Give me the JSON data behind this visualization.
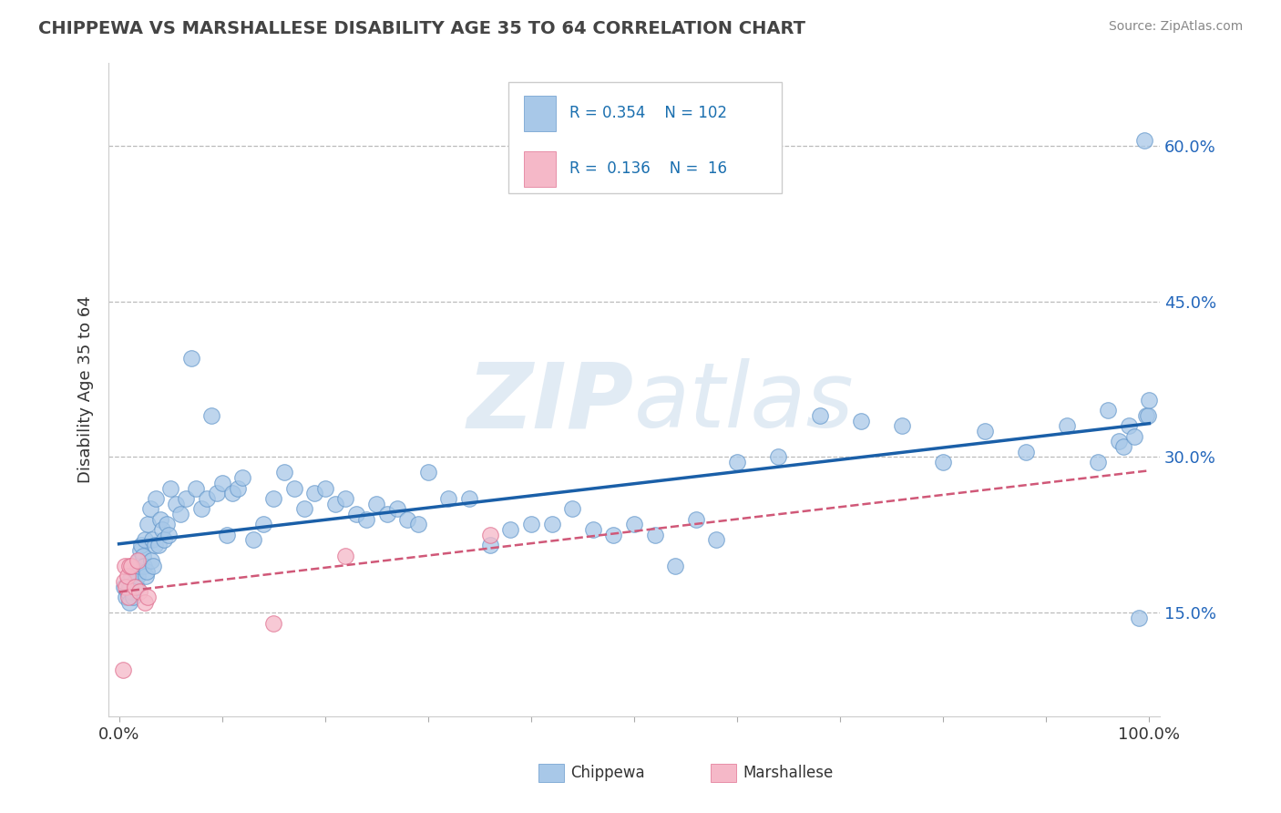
{
  "title": "CHIPPEWA VS MARSHALLESE DISABILITY AGE 35 TO 64 CORRELATION CHART",
  "source": "Source: ZipAtlas.com",
  "ylabel": "Disability Age 35 to 64",
  "xlim": [
    -0.01,
    1.01
  ],
  "ylim": [
    0.05,
    0.68
  ],
  "xticks": [
    0.0,
    0.1,
    0.2,
    0.3,
    0.4,
    0.5,
    0.6,
    0.7,
    0.8,
    0.9,
    1.0
  ],
  "yticks": [
    0.15,
    0.3,
    0.45,
    0.6
  ],
  "yticklabels": [
    "15.0%",
    "30.0%",
    "45.0%",
    "60.0%"
  ],
  "chippewa_R": 0.354,
  "chippewa_N": 102,
  "marshallese_R": 0.136,
  "marshallese_N": 16,
  "chippewa_color": "#a8c8e8",
  "chippewa_edge_color": "#6699cc",
  "marshallese_color": "#f5b8c8",
  "marshallese_edge_color": "#e07090",
  "chippewa_line_color": "#1a5fa8",
  "marshallese_line_color": "#d05878",
  "watermark_color": "#c8d8e8",
  "chippewa_x": [
    0.005,
    0.007,
    0.008,
    0.009,
    0.01,
    0.011,
    0.012,
    0.013,
    0.014,
    0.015,
    0.016,
    0.017,
    0.018,
    0.019,
    0.02,
    0.021,
    0.022,
    0.023,
    0.024,
    0.025,
    0.026,
    0.027,
    0.028,
    0.03,
    0.031,
    0.032,
    0.033,
    0.035,
    0.036,
    0.038,
    0.04,
    0.042,
    0.044,
    0.046,
    0.048,
    0.05,
    0.055,
    0.06,
    0.065,
    0.07,
    0.075,
    0.08,
    0.085,
    0.09,
    0.095,
    0.1,
    0.105,
    0.11,
    0.115,
    0.12,
    0.13,
    0.14,
    0.15,
    0.16,
    0.17,
    0.18,
    0.19,
    0.2,
    0.21,
    0.22,
    0.23,
    0.24,
    0.25,
    0.26,
    0.27,
    0.28,
    0.29,
    0.3,
    0.32,
    0.34,
    0.36,
    0.38,
    0.4,
    0.42,
    0.44,
    0.46,
    0.48,
    0.5,
    0.52,
    0.54,
    0.56,
    0.58,
    0.6,
    0.64,
    0.68,
    0.72,
    0.76,
    0.8,
    0.84,
    0.88,
    0.92,
    0.95,
    0.96,
    0.97,
    0.975,
    0.98,
    0.985,
    0.99,
    0.995,
    0.997,
    0.999,
    1.0
  ],
  "chippewa_y": [
    0.175,
    0.165,
    0.17,
    0.18,
    0.16,
    0.175,
    0.185,
    0.17,
    0.165,
    0.18,
    0.19,
    0.175,
    0.185,
    0.2,
    0.195,
    0.21,
    0.215,
    0.205,
    0.195,
    0.22,
    0.185,
    0.19,
    0.235,
    0.25,
    0.2,
    0.22,
    0.195,
    0.215,
    0.26,
    0.215,
    0.24,
    0.23,
    0.22,
    0.235,
    0.225,
    0.27,
    0.255,
    0.245,
    0.26,
    0.395,
    0.27,
    0.25,
    0.26,
    0.34,
    0.265,
    0.275,
    0.225,
    0.265,
    0.27,
    0.28,
    0.22,
    0.235,
    0.26,
    0.285,
    0.27,
    0.25,
    0.265,
    0.27,
    0.255,
    0.26,
    0.245,
    0.24,
    0.255,
    0.245,
    0.25,
    0.24,
    0.235,
    0.285,
    0.26,
    0.26,
    0.215,
    0.23,
    0.235,
    0.235,
    0.25,
    0.23,
    0.225,
    0.235,
    0.225,
    0.195,
    0.24,
    0.22,
    0.295,
    0.3,
    0.34,
    0.335,
    0.33,
    0.295,
    0.325,
    0.305,
    0.33,
    0.295,
    0.345,
    0.315,
    0.31,
    0.33,
    0.32,
    0.145,
    0.605,
    0.34,
    0.34,
    0.355
  ],
  "marshallese_x": [
    0.004,
    0.005,
    0.006,
    0.007,
    0.008,
    0.009,
    0.01,
    0.012,
    0.015,
    0.018,
    0.02,
    0.025,
    0.028,
    0.15,
    0.22,
    0.36
  ],
  "marshallese_y": [
    0.095,
    0.18,
    0.195,
    0.175,
    0.185,
    0.165,
    0.195,
    0.195,
    0.175,
    0.2,
    0.17,
    0.16,
    0.165,
    0.14,
    0.205,
    0.225
  ]
}
